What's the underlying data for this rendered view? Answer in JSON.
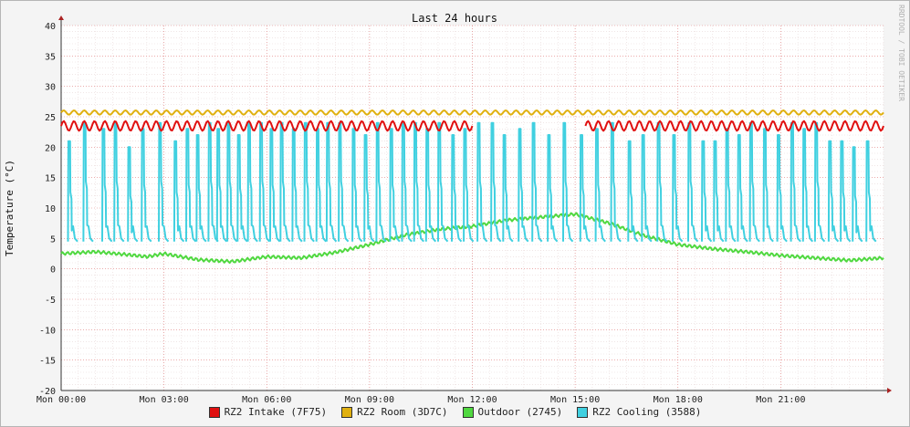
{
  "watermark": "RRDTOOL / TOBI OETIKER",
  "chart_data": {
    "type": "line",
    "title": "Last 24 hours",
    "ylabel": "Temperature (°C)",
    "xlabel": "",
    "ylim": [
      -20,
      40
    ],
    "yticks": [
      40,
      35,
      30,
      25,
      20,
      15,
      10,
      5,
      0,
      -5,
      -10,
      -15,
      -20
    ],
    "xlim_hours": [
      0,
      24
    ],
    "xticks": [
      {
        "hour": 0,
        "label": "Mon 00:00"
      },
      {
        "hour": 3,
        "label": "Mon 03:00"
      },
      {
        "hour": 6,
        "label": "Mon 06:00"
      },
      {
        "hour": 9,
        "label": "Mon 09:00"
      },
      {
        "hour": 12,
        "label": "Mon 12:00"
      },
      {
        "hour": 15,
        "label": "Mon 15:00"
      },
      {
        "hour": 18,
        "label": "Mon 18:00"
      },
      {
        "hour": 21,
        "label": "Mon 21:00"
      }
    ],
    "grid": true,
    "legend_position": "bottom",
    "series": [
      {
        "name": "RZ2 Intake (7F75)",
        "color": "#e01010",
        "x": [
          0,
          1,
          2,
          3,
          4,
          5,
          6,
          7,
          8,
          9,
          10,
          11,
          12,
          12.1,
          15.2,
          15.3,
          18,
          19,
          20,
          21,
          22,
          23,
          24
        ],
        "y": [
          23.5,
          23.5,
          23.5,
          23.5,
          23.5,
          23.5,
          23.5,
          23.5,
          23.5,
          23.5,
          23.5,
          23.5,
          23.5,
          null,
          null,
          23.5,
          23.5,
          23.5,
          23.5,
          23.5,
          23.5,
          23.5,
          23.5
        ]
      },
      {
        "name": "RZ2 Room (3D7C)",
        "color": "#e0b010",
        "x": [
          0,
          4,
          8,
          12,
          16,
          20,
          24
        ],
        "y": [
          25.7,
          25.7,
          25.7,
          25.7,
          25.7,
          25.7,
          25.7
        ]
      },
      {
        "name": "Outdoor (2745)",
        "color": "#50d840",
        "x": [
          0,
          1,
          2,
          2.5,
          3,
          4,
          5,
          6,
          7,
          8,
          9,
          10,
          11,
          12,
          13,
          14,
          15,
          16,
          17,
          18,
          19,
          20,
          21,
          22,
          23,
          24
        ],
        "y": [
          2.5,
          2.8,
          2.3,
          2.0,
          2.5,
          1.5,
          1.2,
          2.0,
          1.8,
          2.7,
          4.0,
          5.5,
          6.5,
          7.0,
          8.0,
          8.5,
          9.0,
          7.5,
          5.5,
          4.0,
          3.3,
          2.8,
          2.2,
          1.8,
          1.4,
          1.8
        ]
      },
      {
        "name": "RZ2 Cooling (3588)",
        "color": "#40d0e0",
        "cycles": [
          {
            "start": 0.2,
            "peak": 21
          },
          {
            "start": 0.65,
            "peak": 24
          },
          {
            "start": 1.2,
            "peak": 23
          },
          {
            "start": 1.55,
            "peak": 24
          },
          {
            "start": 1.95,
            "peak": 20
          },
          {
            "start": 2.35,
            "peak": 23
          },
          {
            "start": 2.85,
            "peak": 24
          },
          {
            "start": 3.3,
            "peak": 21
          },
          {
            "start": 3.65,
            "peak": 23
          },
          {
            "start": 3.95,
            "peak": 22
          },
          {
            "start": 4.3,
            "peak": 24
          },
          {
            "start": 4.55,
            "peak": 23
          },
          {
            "start": 4.85,
            "peak": 24
          },
          {
            "start": 5.15,
            "peak": 22
          },
          {
            "start": 5.45,
            "peak": 24
          },
          {
            "start": 5.8,
            "peak": 24
          },
          {
            "start": 6.1,
            "peak": 23
          },
          {
            "start": 6.4,
            "peak": 24
          },
          {
            "start": 6.75,
            "peak": 23
          },
          {
            "start": 7.1,
            "peak": 24
          },
          {
            "start": 7.45,
            "peak": 23
          },
          {
            "start": 7.75,
            "peak": 24
          },
          {
            "start": 8.1,
            "peak": 24
          },
          {
            "start": 8.5,
            "peak": 23
          },
          {
            "start": 8.85,
            "peak": 22
          },
          {
            "start": 9.2,
            "peak": 24
          },
          {
            "start": 9.6,
            "peak": 23
          },
          {
            "start": 9.95,
            "peak": 24
          },
          {
            "start": 10.3,
            "peak": 24
          },
          {
            "start": 10.65,
            "peak": 23
          },
          {
            "start": 11.0,
            "peak": 24
          },
          {
            "start": 11.4,
            "peak": 22
          },
          {
            "start": 11.75,
            "peak": 23
          },
          {
            "start": 12.15,
            "peak": 24
          },
          {
            "start": 12.55,
            "peak": 24
          },
          {
            "start": 12.9,
            "peak": 22
          },
          {
            "start": 13.35,
            "peak": 23
          },
          {
            "start": 13.75,
            "peak": 24
          },
          {
            "start": 14.2,
            "peak": 22
          },
          {
            "start": 14.65,
            "peak": 24
          },
          {
            "start": 15.15,
            "peak": 22
          },
          {
            "start": 15.6,
            "peak": 23
          },
          {
            "start": 16.05,
            "peak": 24
          },
          {
            "start": 16.55,
            "peak": 21
          },
          {
            "start": 16.95,
            "peak": 22
          },
          {
            "start": 17.4,
            "peak": 24
          },
          {
            "start": 17.85,
            "peak": 22
          },
          {
            "start": 18.3,
            "peak": 24
          },
          {
            "start": 18.7,
            "peak": 21
          },
          {
            "start": 19.05,
            "peak": 21
          },
          {
            "start": 19.4,
            "peak": 23
          },
          {
            "start": 19.75,
            "peak": 22
          },
          {
            "start": 20.1,
            "peak": 24
          },
          {
            "start": 20.5,
            "peak": 23
          },
          {
            "start": 20.9,
            "peak": 22
          },
          {
            "start": 21.3,
            "peak": 24
          },
          {
            "start": 21.65,
            "peak": 23
          },
          {
            "start": 22.0,
            "peak": 24
          },
          {
            "start": 22.4,
            "peak": 21
          },
          {
            "start": 22.75,
            "peak": 21
          },
          {
            "start": 23.1,
            "peak": 20
          },
          {
            "start": 23.5,
            "peak": 21
          }
        ],
        "base": 4.5
      }
    ]
  }
}
